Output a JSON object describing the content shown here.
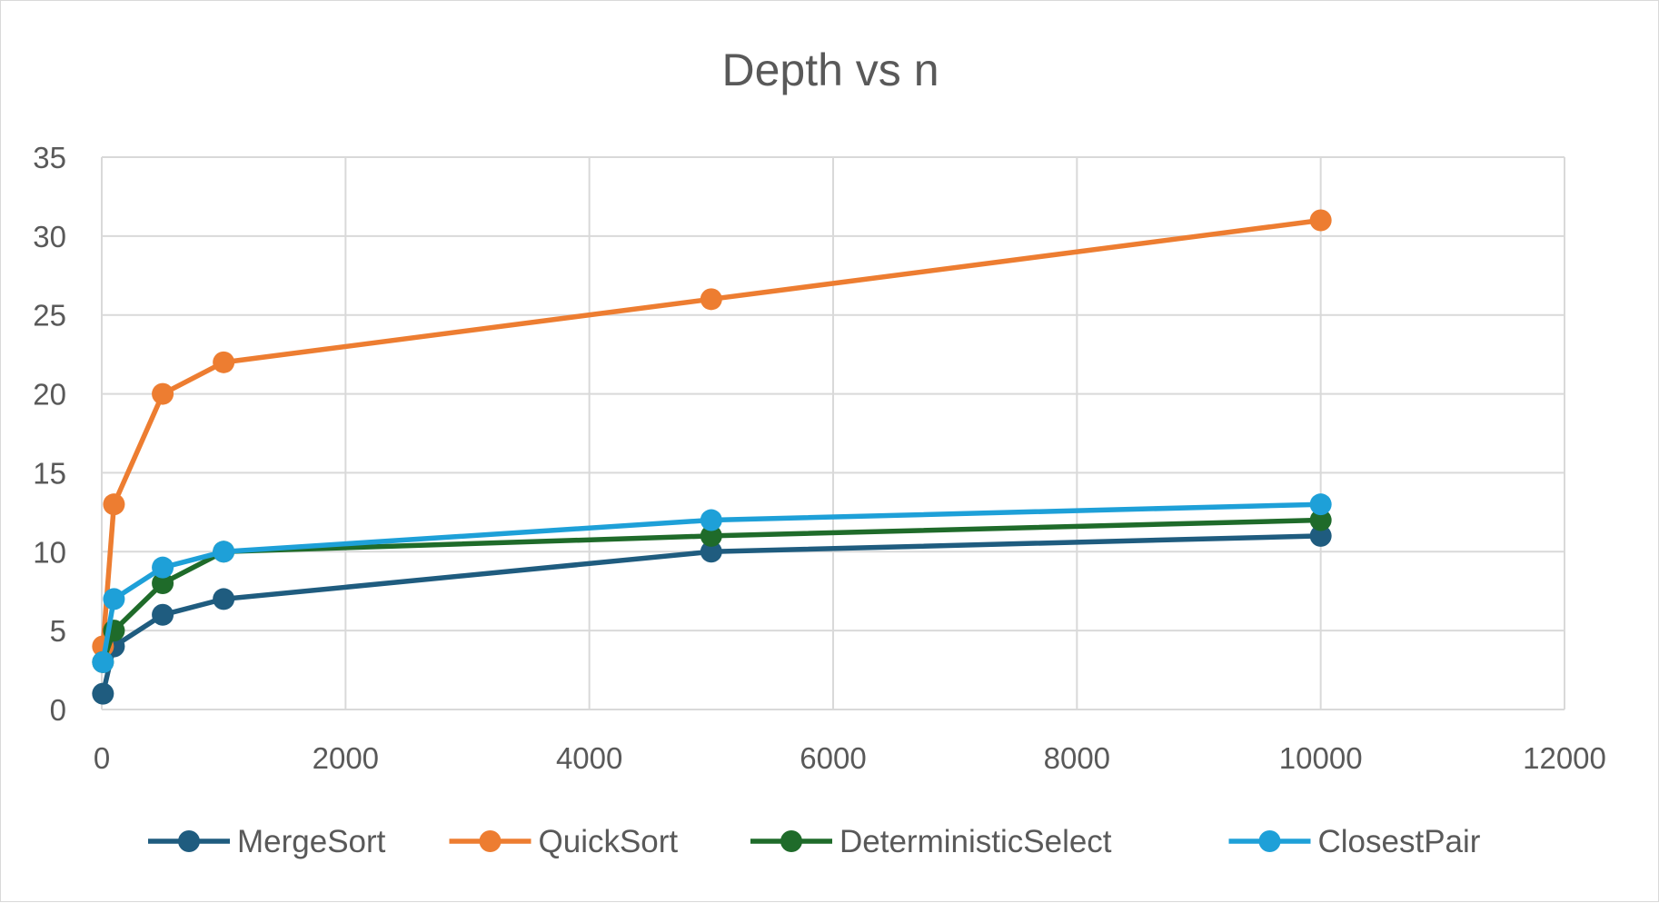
{
  "chart_data": {
    "type": "line",
    "title": "Depth vs n",
    "xlabel": "",
    "ylabel": "",
    "xlim": [
      0,
      12000
    ],
    "ylim": [
      0,
      35
    ],
    "x_ticks": [
      "0",
      "2000",
      "4000",
      "6000",
      "8000",
      "10000",
      "12000"
    ],
    "y_ticks": [
      "0",
      "5",
      "10",
      "15",
      "20",
      "25",
      "30",
      "35"
    ],
    "x_tick_step": 2000,
    "y_tick_step": 5,
    "grid": true,
    "legend_position": "bottom",
    "series": [
      {
        "name": "MergeSort",
        "color": "#1f5c7f",
        "points": [
          [
            10,
            1
          ],
          [
            100,
            4
          ],
          [
            500,
            6
          ],
          [
            1000,
            7
          ],
          [
            5000,
            10
          ],
          [
            10000,
            11
          ]
        ]
      },
      {
        "name": "QuickSort",
        "color": "#ed7d31",
        "points": [
          [
            10,
            4
          ],
          [
            100,
            13
          ],
          [
            500,
            20
          ],
          [
            1000,
            22
          ],
          [
            5000,
            26
          ],
          [
            10000,
            31
          ]
        ]
      },
      {
        "name": "DeterministicSelect",
        "color": "#1f6b2a",
        "points": [
          [
            10,
            3
          ],
          [
            100,
            5
          ],
          [
            500,
            8
          ],
          [
            1000,
            10
          ],
          [
            5000,
            11
          ],
          [
            10000,
            12
          ]
        ]
      },
      {
        "name": "ClosestPair",
        "color": "#1ea0d8",
        "points": [
          [
            10,
            3
          ],
          [
            100,
            7
          ],
          [
            500,
            9
          ],
          [
            1000,
            10
          ],
          [
            5000,
            12
          ],
          [
            10000,
            13
          ]
        ]
      }
    ]
  }
}
